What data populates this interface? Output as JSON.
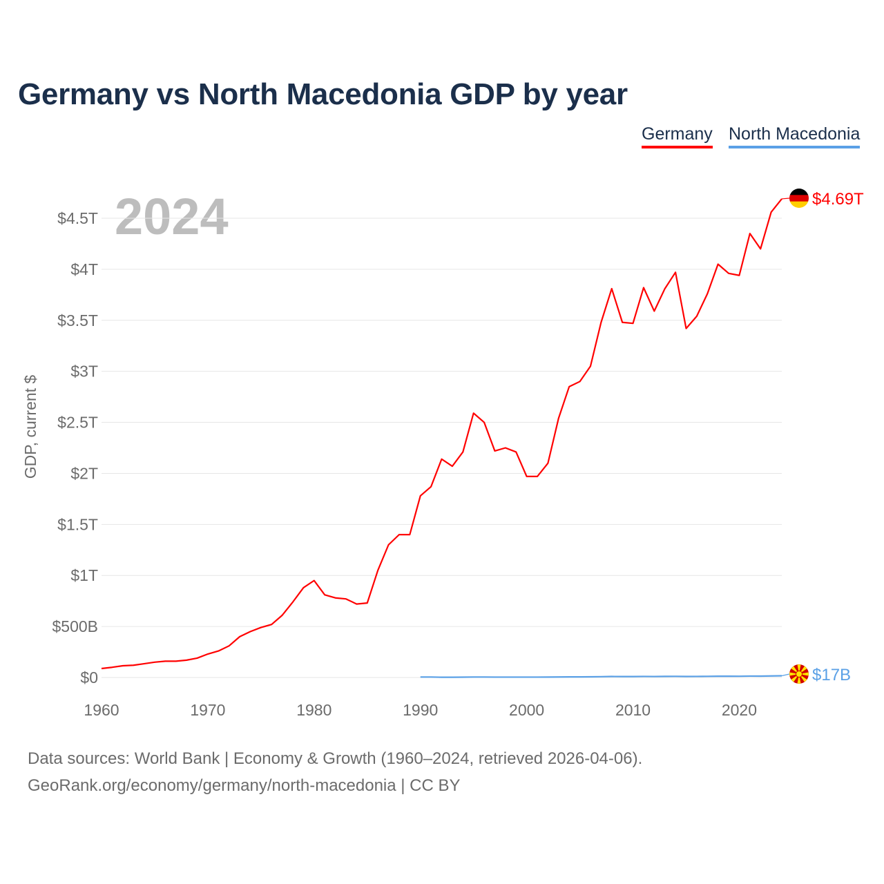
{
  "chart_data": {
    "type": "line",
    "title": "Germany vs North Macedonia GDP by year",
    "xlabel": "",
    "ylabel": "GDP, current $",
    "year_overlay": "2024",
    "xlim": [
      1960,
      2024
    ],
    "ylim": [
      0,
      4.7
    ],
    "x_ticks": [
      1960,
      1970,
      1980,
      1990,
      2000,
      2010,
      2020
    ],
    "y_ticks": [
      {
        "value": 0,
        "label": "$0"
      },
      {
        "value": 0.5,
        "label": "$500B"
      },
      {
        "value": 1,
        "label": "$1T"
      },
      {
        "value": 1.5,
        "label": "$1.5T"
      },
      {
        "value": 2,
        "label": "$2T"
      },
      {
        "value": 2.5,
        "label": "$2.5T"
      },
      {
        "value": 3,
        "label": "$3T"
      },
      {
        "value": 3.5,
        "label": "$3.5T"
      },
      {
        "value": 4,
        "label": "$4T"
      },
      {
        "value": 4.5,
        "label": "$4.5T"
      }
    ],
    "grid": true,
    "legend_placement": "top-right",
    "units": "trillions USD",
    "series": [
      {
        "name": "Germany",
        "color": "#ff0000",
        "end_label": "$4.69T",
        "flag": "germany-flag",
        "start_year": 1960,
        "values": [
          0.088,
          0.1,
          0.115,
          0.12,
          0.135,
          0.15,
          0.16,
          0.16,
          0.17,
          0.19,
          0.23,
          0.26,
          0.31,
          0.4,
          0.45,
          0.49,
          0.52,
          0.61,
          0.74,
          0.88,
          0.95,
          0.81,
          0.78,
          0.77,
          0.72,
          0.73,
          1.05,
          1.3,
          1.4,
          1.4,
          1.78,
          1.87,
          2.14,
          2.07,
          2.21,
          2.59,
          2.5,
          2.22,
          2.25,
          2.21,
          1.97,
          1.97,
          2.1,
          2.54,
          2.85,
          2.9,
          3.05,
          3.48,
          3.81,
          3.48,
          3.47,
          3.82,
          3.59,
          3.81,
          3.97,
          3.42,
          3.54,
          3.76,
          4.05,
          3.96,
          3.94,
          4.35,
          4.2,
          4.56,
          4.69
        ]
      },
      {
        "name": "North Macedonia",
        "color": "#5aa0e6",
        "end_label": "$17B",
        "flag": "north-macedonia-flag",
        "start_year": 1990,
        "values": [
          0.0045,
          0.0047,
          0.0023,
          0.0026,
          0.0036,
          0.0047,
          0.0046,
          0.0039,
          0.0037,
          0.0039,
          0.0038,
          0.0037,
          0.004,
          0.0049,
          0.0057,
          0.0061,
          0.0066,
          0.0082,
          0.0099,
          0.0094,
          0.0094,
          0.0105,
          0.0097,
          0.0108,
          0.0114,
          0.0101,
          0.0107,
          0.0113,
          0.0127,
          0.0126,
          0.0124,
          0.014,
          0.0136,
          0.0152,
          0.017
        ]
      }
    ]
  },
  "footer": {
    "line1": "Data sources: World Bank | Economy & Growth (1960–2024, retrieved 2026-04-06).",
    "line2": "GeoRank.org/economy/germany/north-macedonia | CC BY"
  }
}
